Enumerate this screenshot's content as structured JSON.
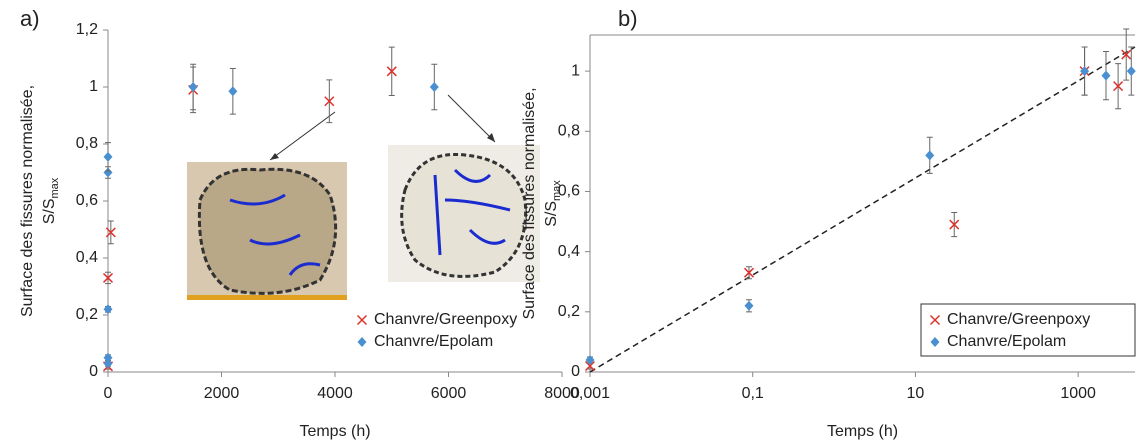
{
  "chart_data": [
    {
      "type": "scatter",
      "panel": "a)",
      "xlabel": "Temps (h)",
      "ylabel": "Surface des fissures normalisée,",
      "ylabel_line2": {
        "text": "S/S",
        "subscript": "max"
      },
      "xlim": [
        0,
        8000
      ],
      "xticks": [
        0,
        2000,
        4000,
        6000,
        8000
      ],
      "ylim": [
        0,
        1.2
      ],
      "yticks": [
        0,
        {
          "value": 0.2,
          "label": "0,2"
        },
        {
          "value": 0.4,
          "label": "0,4"
        },
        {
          "value": 0.6,
          "label": "0,6"
        },
        {
          "value": 0.8,
          "label": "0,8"
        },
        1,
        {
          "value": 1.2,
          "label": "1,2"
        }
      ],
      "legend": "lower right",
      "series": [
        {
          "name": "Chanvre/Greenpoxy",
          "marker": "x",
          "color": "#e0302c",
          "x": [
            0,
            0,
            50,
            1500,
            3900,
            5000
          ],
          "values": [
            0.02,
            0.33,
            0.49,
            0.99,
            0.95,
            1.055
          ],
          "errors": [
            0.01,
            0.02,
            0.04,
            0.08,
            0.075,
            0.085
          ]
        },
        {
          "name": "Chanvre/Epolam",
          "marker": "diamond",
          "color": "#4a90d0",
          "x": [
            0,
            0,
            0,
            0,
            0,
            1500,
            2200,
            5750
          ],
          "values": [
            0.03,
            0.05,
            0.22,
            0.7,
            0.755,
            1.0,
            0.985,
            1.0
          ],
          "errors": [
            0.01,
            0.01,
            0.01,
            0.02,
            0.05,
            0.08,
            0.08,
            0.08
          ]
        }
      ]
    },
    {
      "type": "scatter",
      "panel": "b)",
      "xlabel": "Temps (h)",
      "ylabel": "Surface des fissures normalisée,",
      "ylabel_line2": {
        "text": "S/S",
        "subscript": "max"
      },
      "xlog": true,
      "xlim": [
        0.001,
        5000
      ],
      "xticks": [
        {
          "value": 0.001,
          "label": "0,001"
        },
        {
          "value": 0.1,
          "label": "0,1"
        },
        10,
        1000
      ],
      "ylim": [
        0,
        1.12
      ],
      "yticks": [
        0,
        {
          "value": 0.2,
          "label": "0,2"
        },
        {
          "value": 0.4,
          "label": "0,4"
        },
        {
          "value": 0.6,
          "label": "0,6"
        },
        {
          "value": 0.8,
          "label": "0,8"
        },
        1
      ],
      "legend": "lower right",
      "trendline": {
        "x": [
          0.001,
          5000
        ],
        "values": [
          0,
          1.08
        ]
      },
      "series": [
        {
          "name": "Chanvre/Greenpoxy",
          "marker": "x",
          "color": "#e0302c",
          "x": [
            0.001,
            0.09,
            30,
            1200,
            3100,
            3900
          ],
          "values": [
            0.02,
            0.33,
            0.49,
            1.0,
            0.95,
            1.055
          ],
          "errors": [
            0.01,
            0.02,
            0.04,
            0.08,
            0.075,
            0.085
          ]
        },
        {
          "name": "Chanvre/Epolam",
          "marker": "diamond",
          "color": "#4a90d0",
          "x": [
            0.001,
            0.09,
            15,
            1200,
            2200,
            4500
          ],
          "values": [
            0.04,
            0.22,
            0.72,
            1.0,
            0.985,
            1.0
          ],
          "errors": [
            0.01,
            0.02,
            0.06,
            0.08,
            0.08,
            0.08
          ]
        }
      ]
    }
  ]
}
